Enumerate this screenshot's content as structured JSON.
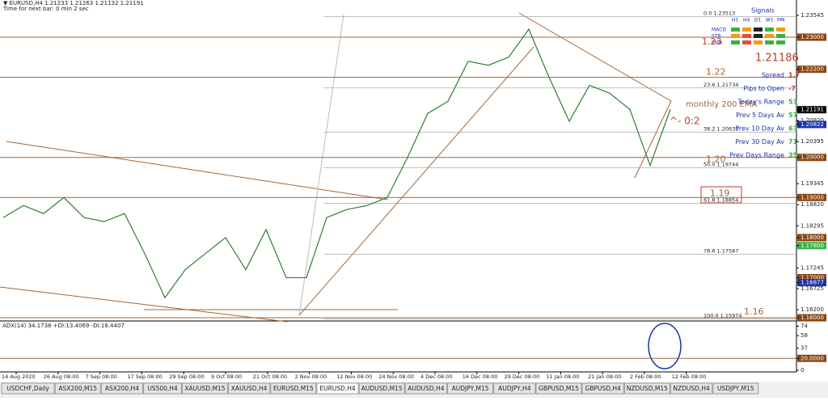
{
  "header": {
    "symbol_line": "▼ EURUSD,H4  1.21233 1.21263 1.21132 1.21191",
    "timer": "Time for next bar: 0 min 2 sec"
  },
  "signals": {
    "title": "Signals",
    "timeframes": [
      "H1",
      "H4",
      "D1",
      "W1",
      "MN"
    ],
    "indicators": [
      "MACD",
      "STR",
      "EMA"
    ],
    "price": "1.21186",
    "stats": [
      {
        "label": "Spread",
        "value": "1.7"
      },
      {
        "label": "Pips to Open",
        "value": "-7"
      },
      {
        "label": "Today's Range",
        "value": "53"
      },
      {
        "label": "Prev 5 Days Av",
        "value": "57"
      },
      {
        "label": "Prev 10 Day Av",
        "value": "63"
      },
      {
        "label": "Prev 30 Day Av",
        "value": "71"
      },
      {
        "label": "Prev Days Range",
        "value": "35"
      }
    ]
  },
  "annotations": {
    "ema": "monthly 200 EMA",
    "marker": "^- 0:2"
  },
  "price_axis": {
    "ylim": [
      1.1592,
      1.23928
    ],
    "ticks": [
      {
        "value": 1.23545,
        "label": "1.23545"
      },
      {
        "value": 1.23,
        "label": "1.23000",
        "color": "#8b4513"
      },
      {
        "value": 1.222,
        "label": "1.22200",
        "color": "#8b4513"
      },
      {
        "value": 1.21191,
        "label": "1.21191",
        "color": "#000000"
      },
      {
        "value": 1.2092,
        "label": "1.20920"
      },
      {
        "value": 1.20822,
        "label": "1.20822",
        "color": "#1a33a8"
      },
      {
        "value": 1.20395,
        "label": "1.20395"
      },
      {
        "value": 1.2,
        "label": "1.20000",
        "color": "#8b4513"
      },
      {
        "value": 1.19345,
        "label": "1.19345"
      },
      {
        "value": 1.19,
        "label": "1.19000",
        "color": "#8b4513"
      },
      {
        "value": 1.1882,
        "label": "1.18820"
      },
      {
        "value": 1.18295,
        "label": "1.18295"
      },
      {
        "value": 1.18,
        "label": "1.18000",
        "color": "#8b4513"
      },
      {
        "value": 1.178,
        "label": "1.17800",
        "color": "#3cb043"
      },
      {
        "value": 1.17245,
        "label": "1.17245"
      },
      {
        "value": 1.17,
        "label": "1.17000",
        "color": "#8b4513"
      },
      {
        "value": 1.16877,
        "label": "1.16877",
        "color": "#1a33a8"
      },
      {
        "value": 1.16725,
        "label": "1.16725"
      },
      {
        "value": 1.162,
        "label": "1.16200"
      },
      {
        "value": 1.16,
        "label": "1.16000",
        "color": "#8b4513"
      }
    ]
  },
  "round_levels": [
    {
      "value": 1.23,
      "label": "1.23"
    },
    {
      "value": 1.22,
      "label": "1.22"
    },
    {
      "value": 1.2,
      "label": "1.20"
    },
    {
      "value": 1.19,
      "label": "1.19"
    },
    {
      "value": 1.16,
      "label": "1.16"
    }
  ],
  "fib_levels": [
    {
      "value": 1.23513,
      "label": "0.0  1.23513"
    },
    {
      "value": 1.21734,
      "label": "23.6  1.21734"
    },
    {
      "value": 1.20633,
      "label": "38.2  1.20633"
    },
    {
      "value": 1.19744,
      "label": "50.0  1.19744"
    },
    {
      "value": 1.18854,
      "label": "61.8  1.18854"
    },
    {
      "value": 1.17587,
      "label": "78.6  1.17587"
    },
    {
      "value": 1.15974,
      "label": "100.0  1.15974"
    }
  ],
  "price_trace": {
    "values": [
      1.185,
      1.188,
      1.186,
      1.19,
      1.185,
      1.184,
      1.186,
      1.176,
      1.165,
      1.172,
      1.176,
      1.18,
      1.172,
      1.182,
      1.17,
      1.17,
      1.185,
      1.187,
      1.188,
      1.19,
      1.2,
      1.211,
      1.214,
      1.224,
      1.223,
      1.225,
      1.232,
      1.22,
      1.209,
      1.218,
      1.216,
      1.212,
      1.198,
      1.212
    ]
  },
  "adx": {
    "label": "ADX(14) 34.1738 +DI:13.4069 -DI:16.4407",
    "ylim": [
      0,
      80
    ],
    "ticks": [
      74,
      58,
      37,
      {
        "value": 20,
        "label": "20.0000"
      },
      0
    ]
  },
  "dates": [
    "14 Aug 2020",
    "26 Aug 08:00",
    "7 Sep 08:00",
    "17 Sep 08:00",
    "29 Sep 08:00",
    "9 Oct 08:00",
    "21 Oct 08:00",
    "2 Nov 08:00",
    "12 Nov 08:00",
    "24 Nov 08:00",
    "4 Dec 08:00",
    "16 Dec 08:00",
    "29 Dec 08:00",
    "11 Jan 08:00",
    "21 Jan 08:00",
    "2 Feb 08:00",
    "12 Feb 08:00"
  ],
  "tabs": [
    "USDCHF,Daily",
    "ASX200,M15",
    "ASX200,H4",
    "US500,H4",
    "XAUUSD,M15",
    "XAUUSD,H4",
    "EURUSD,M15",
    "EURUSD,H4",
    "AUDUSD,M15",
    "AUDUSD,H4",
    "AUDJPY,M15",
    "AUDJPY,H4",
    "GBPUSD,M15",
    "GBPUSD,H4",
    "NZDUSD,M15",
    "NZDUSD,H4",
    "USDJPY,M15"
  ],
  "active_tab": 7
}
